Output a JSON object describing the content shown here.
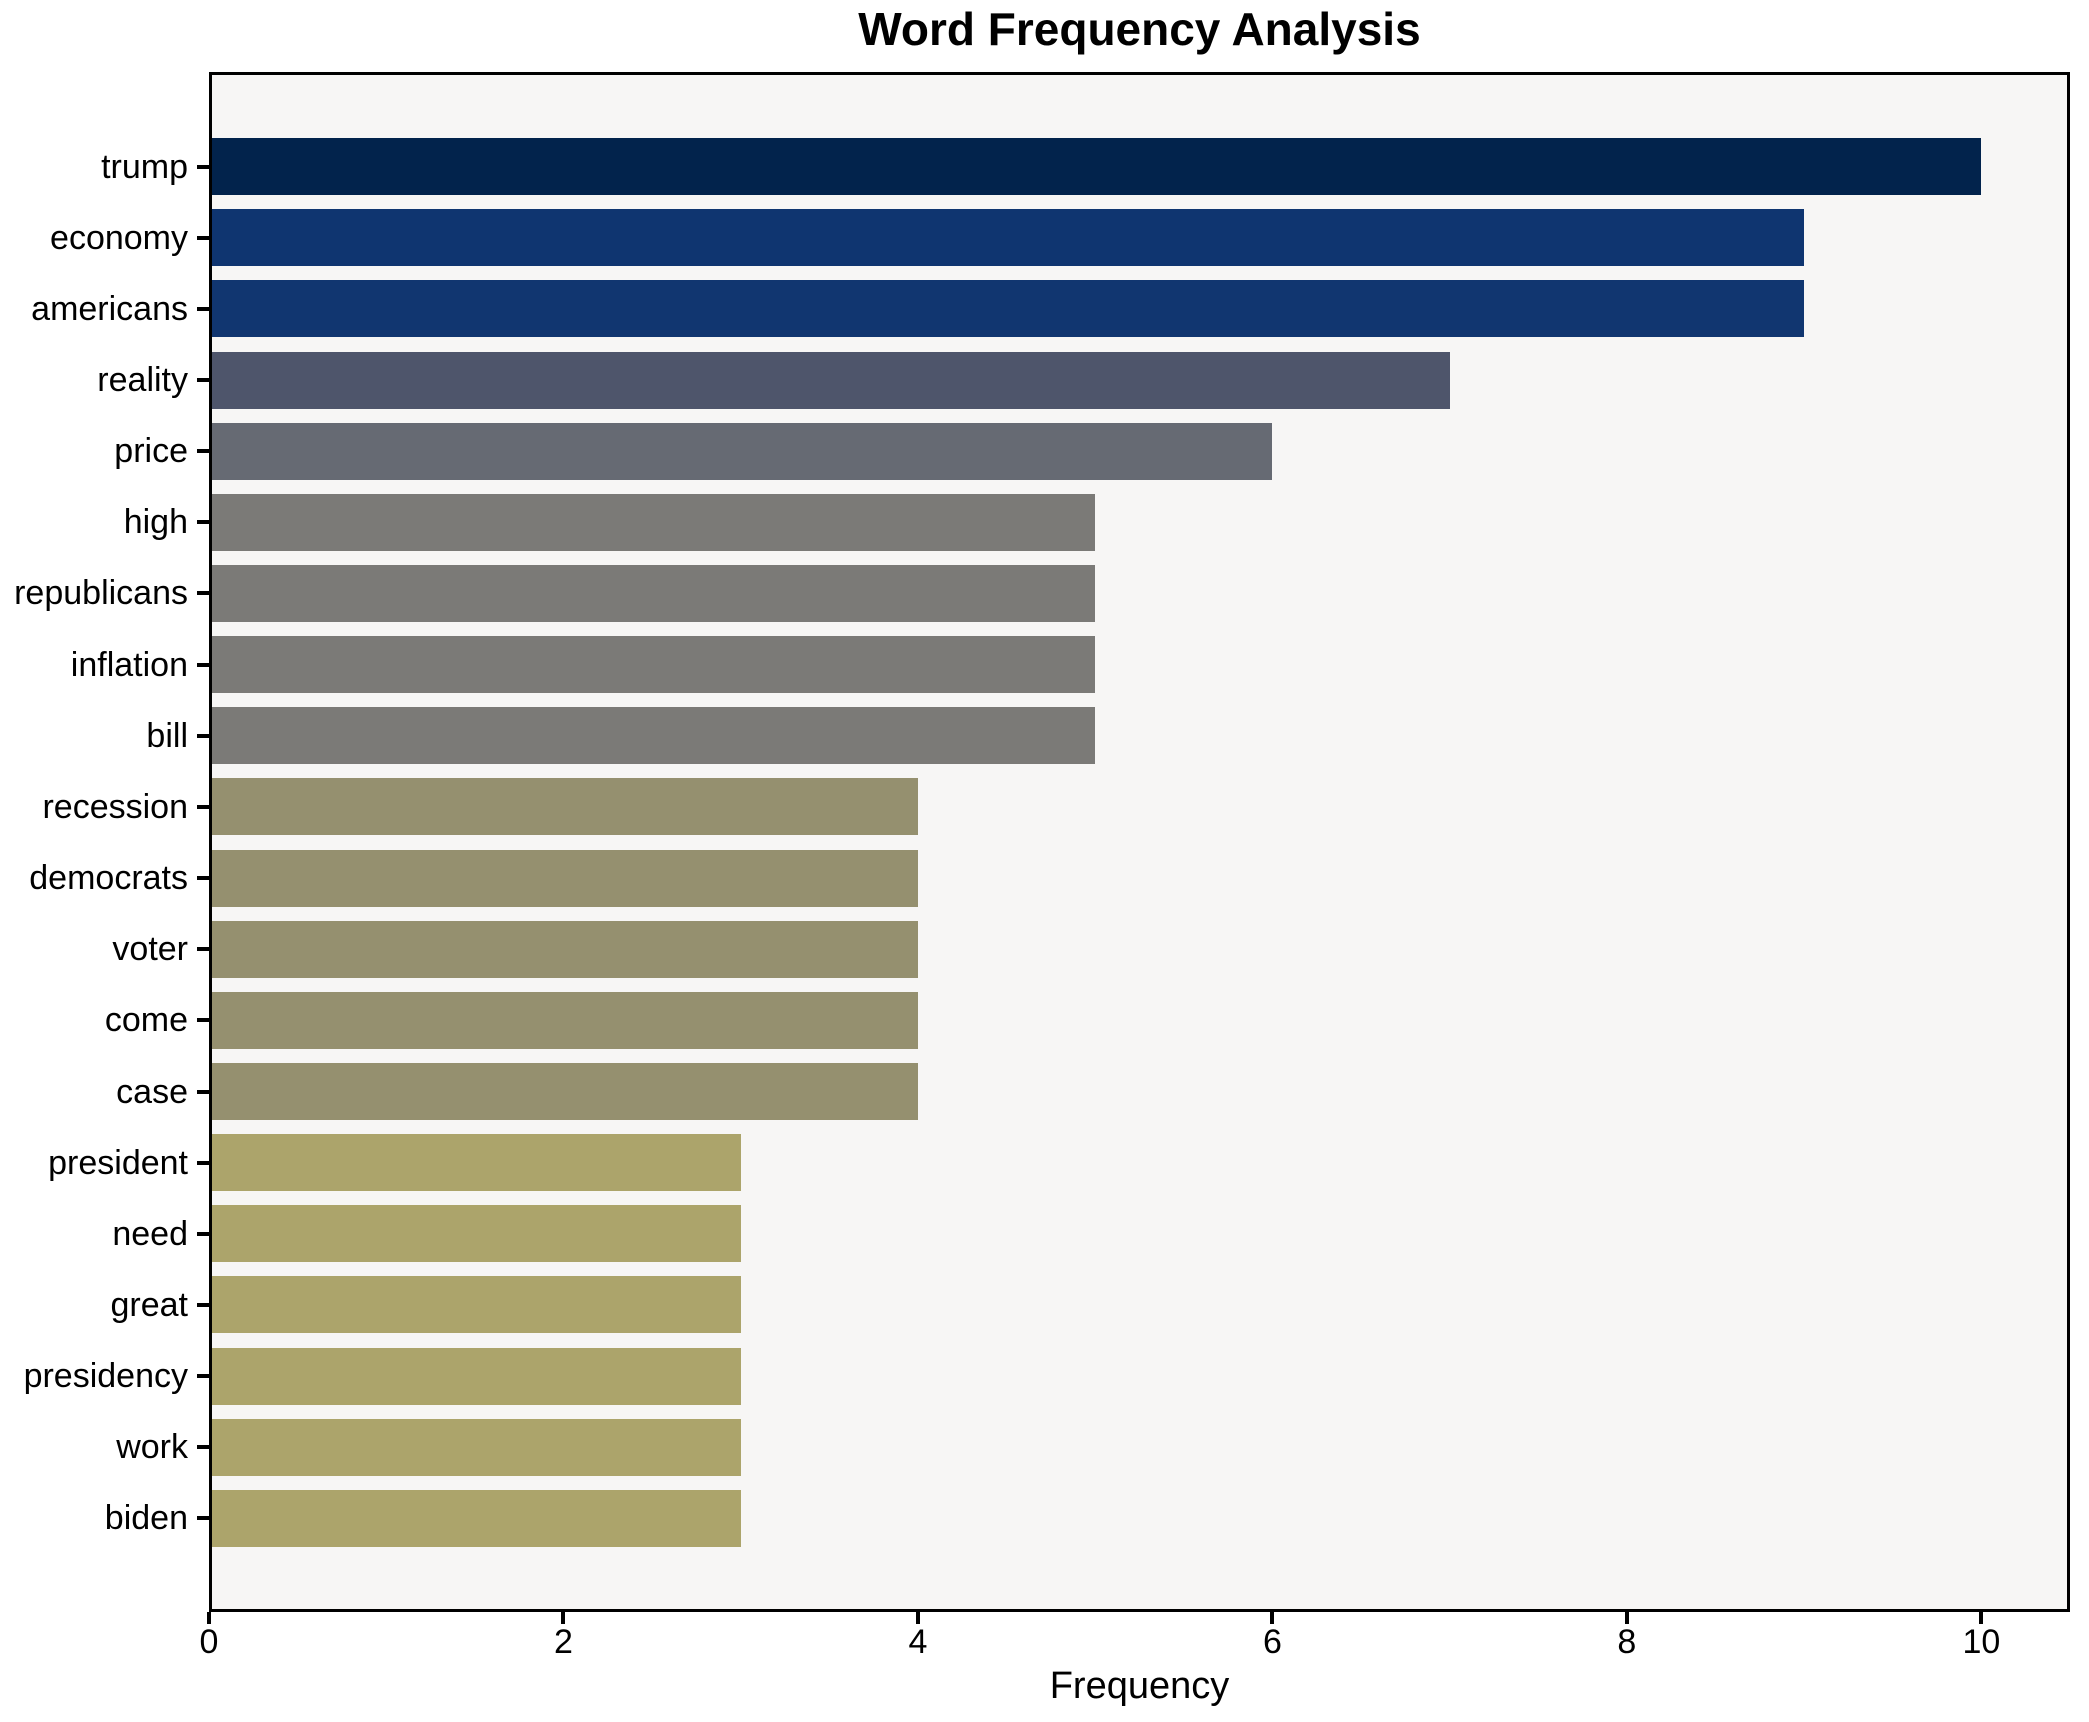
{
  "chart_data": {
    "type": "bar",
    "orientation": "horizontal",
    "title": "Word Frequency Analysis",
    "xlabel": "Frequency",
    "ylabel": "",
    "xlim": [
      0,
      10.5
    ],
    "x_ticks": [
      0,
      2,
      4,
      6,
      8,
      10
    ],
    "grid": false,
    "legend": false,
    "figure_background": "#ffffff",
    "plot_background": "#f7f6f5",
    "spine_color": "#000000",
    "text_color": "#000000",
    "categories": [
      "trump",
      "economy",
      "americans",
      "reality",
      "price",
      "high",
      "republicans",
      "inflation",
      "bill",
      "recession",
      "democrats",
      "voter",
      "come",
      "case",
      "president",
      "need",
      "great",
      "presidency",
      "work",
      "biden"
    ],
    "values": [
      10,
      9,
      9,
      7,
      6,
      5,
      5,
      5,
      5,
      4,
      4,
      4,
      4,
      4,
      3,
      3,
      3,
      3,
      3,
      3
    ],
    "bar_colors": [
      "#02234c",
      "#0f3570",
      "#113670",
      "#4e556b",
      "#666a73",
      "#7b7a77",
      "#7b7a77",
      "#7b7a77",
      "#7b7a77",
      "#95906f",
      "#95906f",
      "#95906f",
      "#95906f",
      "#95906f",
      "#aca46b",
      "#aca46b",
      "#aca46b",
      "#aca46b",
      "#aca46b",
      "#aca46b"
    ]
  }
}
